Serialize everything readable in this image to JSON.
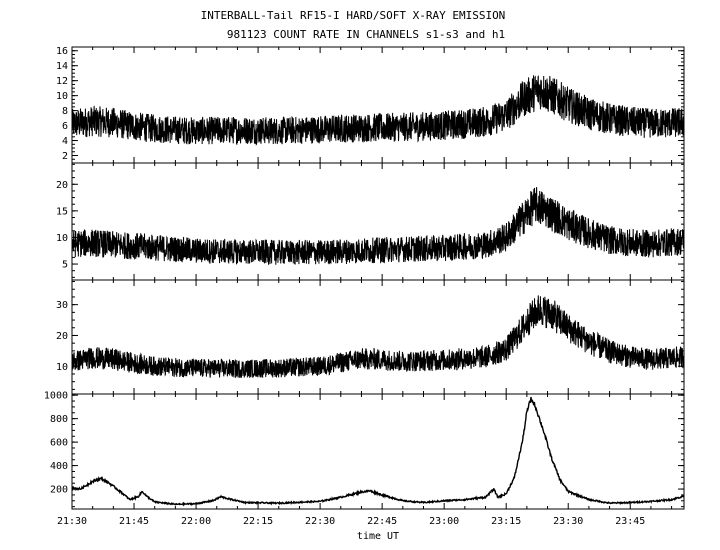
{
  "chart_data": {
    "type": "line",
    "title": "INTERBALL-Tail RF15-I HARD/SOFT X-RAY EMISSION",
    "subtitle": "981123  COUNT RATE IN CHANNELS s1-s3 and h1",
    "xlabel": "time UT",
    "x_ticks": [
      "21:30",
      "21:45",
      "22:00",
      "22:15",
      "22:30",
      "22:45",
      "23:00",
      "23:15",
      "23:30",
      "23:45"
    ],
    "x_range": [
      "21:30",
      "23:58"
    ],
    "line_color": "#000000",
    "panels": [
      {
        "ylim": [
          1,
          16.5
        ],
        "y_ticks": [
          2,
          4,
          6,
          8,
          10,
          12,
          14,
          16
        ],
        "noise": 2.0,
        "points": [
          [
            "21:30",
            6.2
          ],
          [
            "21:35",
            6.6
          ],
          [
            "21:40",
            6.4
          ],
          [
            "21:45",
            5.9
          ],
          [
            "21:50",
            5.6
          ],
          [
            "21:55",
            5.4
          ],
          [
            "22:00",
            5.3
          ],
          [
            "22:10",
            5.4
          ],
          [
            "22:20",
            5.3
          ],
          [
            "22:30",
            5.5
          ],
          [
            "22:40",
            5.7
          ],
          [
            "22:50",
            5.8
          ],
          [
            "23:00",
            6.0
          ],
          [
            "23:10",
            6.5
          ],
          [
            "23:15",
            7.4
          ],
          [
            "23:19",
            9.5
          ],
          [
            "23:23",
            10.8
          ],
          [
            "23:27",
            9.8
          ],
          [
            "23:30",
            8.8
          ],
          [
            "23:35",
            7.6
          ],
          [
            "23:40",
            6.9
          ],
          [
            "23:45",
            6.5
          ],
          [
            "23:50",
            6.3
          ],
          [
            "23:58",
            6.4
          ]
        ]
      },
      {
        "ylim": [
          2,
          24
        ],
        "y_ticks": [
          5,
          10,
          15,
          20
        ],
        "noise": 2.6,
        "points": [
          [
            "21:30",
            8.8
          ],
          [
            "21:35",
            9.0
          ],
          [
            "21:40",
            8.6
          ],
          [
            "21:45",
            8.4
          ],
          [
            "21:50",
            8.1
          ],
          [
            "21:55",
            7.8
          ],
          [
            "22:00",
            7.5
          ],
          [
            "22:10",
            7.3
          ],
          [
            "22:20",
            7.2
          ],
          [
            "22:30",
            7.2
          ],
          [
            "22:40",
            7.5
          ],
          [
            "22:50",
            7.8
          ],
          [
            "23:00",
            8.0
          ],
          [
            "23:10",
            8.6
          ],
          [
            "23:15",
            10.0
          ],
          [
            "23:20",
            14.5
          ],
          [
            "23:22",
            16.2
          ],
          [
            "23:25",
            15.0
          ],
          [
            "23:30",
            12.5
          ],
          [
            "23:35",
            10.8
          ],
          [
            "23:40",
            9.5
          ],
          [
            "23:45",
            9.0
          ],
          [
            "23:50",
            8.8
          ],
          [
            "23:58",
            9.3
          ]
        ]
      },
      {
        "ylim": [
          1,
          38
        ],
        "y_ticks": [
          10,
          20,
          30
        ],
        "noise": 3.4,
        "points": [
          [
            "21:30",
            11.5
          ],
          [
            "21:35",
            12.8
          ],
          [
            "21:40",
            12.3
          ],
          [
            "21:45",
            11.0
          ],
          [
            "21:50",
            10.0
          ],
          [
            "21:55",
            9.6
          ],
          [
            "22:00",
            9.4
          ],
          [
            "22:10",
            9.2
          ],
          [
            "22:20",
            9.4
          ],
          [
            "22:30",
            10.0
          ],
          [
            "22:35",
            11.2
          ],
          [
            "22:40",
            12.4
          ],
          [
            "22:45",
            12.2
          ],
          [
            "22:50",
            11.6
          ],
          [
            "23:00",
            12.0
          ],
          [
            "23:10",
            13.0
          ],
          [
            "23:15",
            15.5
          ],
          [
            "23:18",
            20.5
          ],
          [
            "23:21",
            26.0
          ],
          [
            "23:23",
            28.5
          ],
          [
            "23:26",
            27.0
          ],
          [
            "23:30",
            22.5
          ],
          [
            "23:35",
            18.0
          ],
          [
            "23:40",
            14.8
          ],
          [
            "23:45",
            13.0
          ],
          [
            "23:50",
            12.2
          ],
          [
            "23:58",
            13.0
          ]
        ]
      },
      {
        "ylim": [
          30,
          1010
        ],
        "y_ticks": [
          200,
          400,
          600,
          800,
          1000
        ],
        "noise": 6,
        "points": [
          [
            "21:30",
            210
          ],
          [
            "21:32",
            200
          ],
          [
            "21:35",
            265
          ],
          [
            "21:37",
            290
          ],
          [
            "21:39",
            250
          ],
          [
            "21:42",
            170
          ],
          [
            "21:44",
            110
          ],
          [
            "21:46",
            135
          ],
          [
            "21:47",
            180
          ],
          [
            "21:48",
            140
          ],
          [
            "21:50",
            90
          ],
          [
            "21:55",
            70
          ],
          [
            "22:00",
            75
          ],
          [
            "22:04",
            100
          ],
          [
            "22:06",
            135
          ],
          [
            "22:08",
            115
          ],
          [
            "22:12",
            85
          ],
          [
            "22:20",
            80
          ],
          [
            "22:30",
            95
          ],
          [
            "22:35",
            130
          ],
          [
            "22:40",
            175
          ],
          [
            "22:42",
            185
          ],
          [
            "22:45",
            150
          ],
          [
            "22:50",
            100
          ],
          [
            "22:55",
            85
          ],
          [
            "23:00",
            100
          ],
          [
            "23:05",
            110
          ],
          [
            "23:10",
            130
          ],
          [
            "23:12",
            200
          ],
          [
            "23:13",
            130
          ],
          [
            "23:15",
            160
          ],
          [
            "23:17",
            300
          ],
          [
            "23:19",
            620
          ],
          [
            "23:20",
            860
          ],
          [
            "23:21",
            970
          ],
          [
            "23:22",
            910
          ],
          [
            "23:24",
            700
          ],
          [
            "23:26",
            460
          ],
          [
            "23:28",
            280
          ],
          [
            "23:30",
            180
          ],
          [
            "23:35",
            110
          ],
          [
            "23:40",
            80
          ],
          [
            "23:45",
            85
          ],
          [
            "23:50",
            95
          ],
          [
            "23:55",
            110
          ],
          [
            "23:58",
            140
          ]
        ]
      }
    ]
  }
}
